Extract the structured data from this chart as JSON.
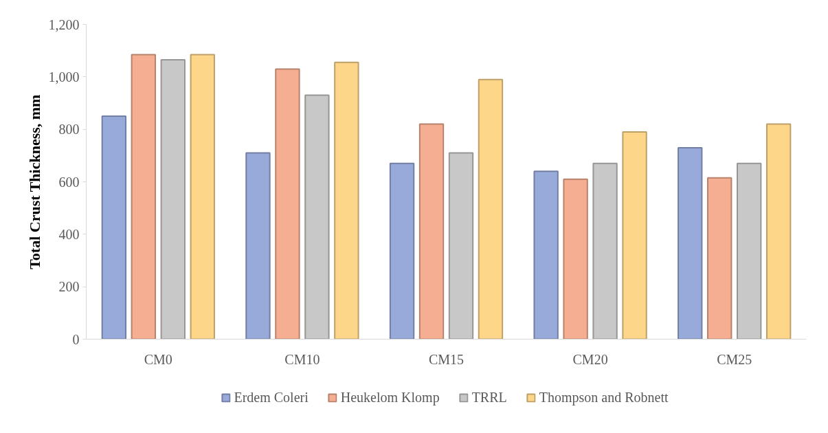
{
  "chart_data": {
    "type": "bar",
    "ylabel": "Total Crust Thickness, mm",
    "categories": [
      "CM0",
      "CM10",
      "CM15",
      "CM20",
      "CM25"
    ],
    "series": [
      {
        "name": "Erdem Coleri",
        "color": "#98aad9",
        "values": [
          850,
          710,
          670,
          640,
          730
        ]
      },
      {
        "name": "Heukelom Klomp",
        "color": "#f5ae91",
        "values": [
          1085,
          1030,
          820,
          610,
          615
        ]
      },
      {
        "name": "TRRL",
        "color": "#c8c8c8",
        "values": [
          1065,
          930,
          710,
          670,
          670
        ]
      },
      {
        "name": "Thompson and Robnett",
        "color": "#fdd68a",
        "values": [
          1085,
          1055,
          990,
          790,
          820
        ]
      }
    ],
    "ylim": [
      0,
      1200
    ],
    "yticks": [
      0,
      {
        "value": 200,
        "label": "200"
      },
      {
        "value": 400,
        "label": "400"
      },
      {
        "value": 600,
        "label": "600"
      },
      {
        "value": 800,
        "label": "800"
      },
      {
        "value": 1000,
        "label": "1,000"
      },
      {
        "value": 1200,
        "label": "1,200"
      }
    ],
    "grid": false,
    "legend": "bottom"
  }
}
